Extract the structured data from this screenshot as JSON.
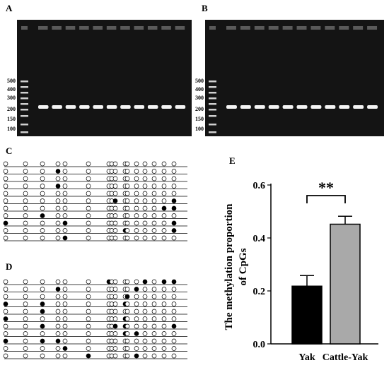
{
  "panels": {
    "a": "A",
    "b": "B",
    "c": "C",
    "d": "D",
    "e": "E"
  },
  "gel_a": {
    "ladder": [
      "500",
      "400",
      "300",
      "200",
      "150",
      "100"
    ],
    "sample_lanes": 11
  },
  "gel_b": {
    "ladder": [
      "500",
      "400",
      "300",
      "200",
      "150",
      "100"
    ],
    "sample_lanes": 11
  },
  "lollipop_c": {
    "rows": [
      "000000000000000000",
      "000100000000000010",
      "000000000000000000",
      "000100000000000000",
      "000000000000000010",
      "000000001000000110",
      "000000000000001110",
      "001000000000000000",
      "100010000000000111",
      "000000000100000111",
      "000010000000000000"
    ]
  },
  "lollipop_d": {
    "rows": [
      "000000100000101111",
      "000100000001000000",
      "000000000010000000",
      "101000000100000000",
      "001000000000000000",
      "100000000100000000",
      "001000001100000111",
      "000000000101000000",
      "101100000000000000",
      "000010000000000000",
      "000001000001000000"
    ]
  },
  "chart_data": {
    "type": "bar",
    "categories": [
      "Yak",
      "Cattle-Yak"
    ],
    "values": [
      0.218,
      0.452
    ],
    "errors": [
      0.04,
      0.03
    ],
    "ylabel_line1": "The methylation proportion",
    "ylabel_line2": "of CpGs",
    "yticks": [
      "0.0",
      "0.2",
      "0.4",
      "0.6"
    ],
    "ylim": [
      0,
      0.6
    ],
    "bar_colors": [
      "#000000",
      "#a9a9a9"
    ],
    "significance": "**"
  }
}
